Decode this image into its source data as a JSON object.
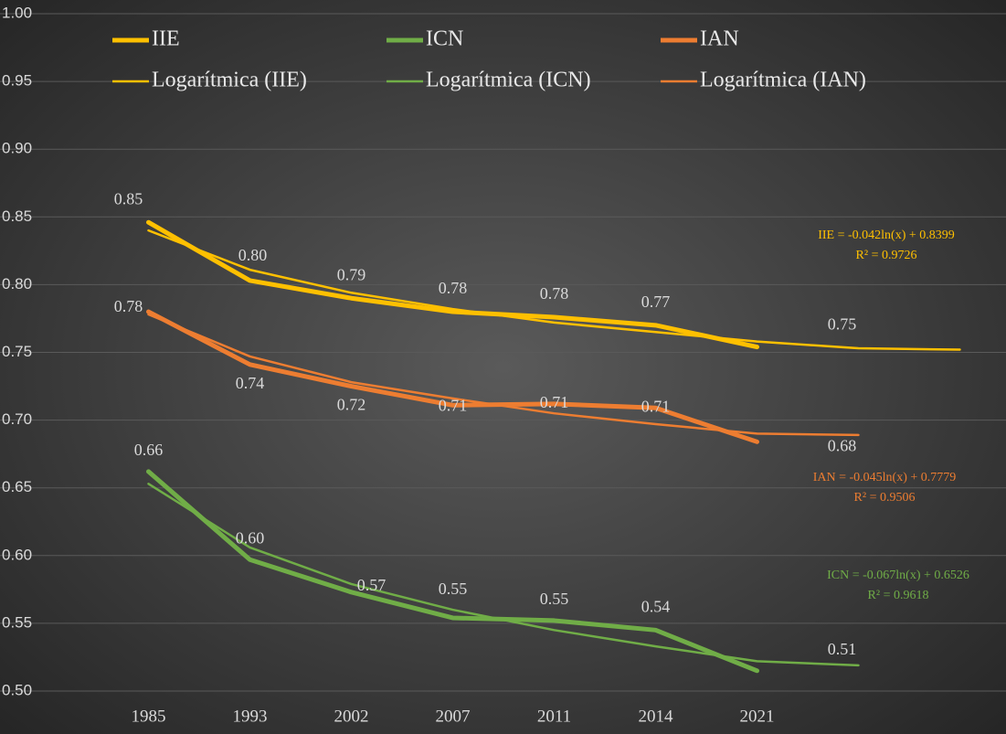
{
  "chart_data": {
    "type": "line",
    "categories": [
      "1985",
      "1993",
      "2002",
      "2007",
      "2011",
      "2014",
      "2021",
      null,
      null
    ],
    "ylim": [
      0.5,
      1.0
    ],
    "yticks": [
      {
        "value": 0.5,
        "label": "0.50"
      },
      0.55,
      {
        "value": 0.6,
        "label": "0.60"
      },
      0.65,
      {
        "value": 0.7,
        "label": "0.70"
      },
      0.75,
      {
        "value": 0.8,
        "label": "0.80"
      },
      0.85,
      {
        "value": 0.9,
        "label": "0.90"
      },
      0.95,
      {
        "value": 1.0,
        "label": "1.00"
      }
    ],
    "grid": true,
    "legend": "top",
    "series": [
      {
        "name": "IIE",
        "color": "#ffc000",
        "values": [
          0.846,
          0.803,
          0.79,
          0.78,
          0.776,
          0.77,
          0.754,
          null,
          null
        ],
        "value_labels": [
          "0.85",
          "0.80",
          "0.79",
          "0.78",
          "0.78",
          "0.77",
          "0.75",
          null,
          null
        ]
      },
      {
        "name": "ICN",
        "color": "#70ad47",
        "values": [
          0.662,
          0.597,
          0.573,
          0.554,
          0.552,
          0.545,
          0.515,
          null,
          null
        ],
        "value_labels": [
          "0.66",
          "0.60",
          "0.57",
          "0.55",
          "0.55",
          "0.54",
          "0.51",
          null,
          null
        ]
      },
      {
        "name": "IAN",
        "color": "#ed7d31",
        "values": [
          0.78,
          0.741,
          0.725,
          0.711,
          0.712,
          0.709,
          0.684,
          null,
          null
        ],
        "value_labels": [
          "0.78",
          "0.74",
          "0.72",
          "0.71",
          "0.71",
          "0.71",
          "0.68",
          null,
          null
        ]
      },
      {
        "name": "Logarítmica (IIE)",
        "color": "#ffc000",
        "trendline": true,
        "values": [
          0.84,
          0.811,
          0.794,
          0.782,
          0.772,
          0.765,
          0.758,
          0.753,
          0.752
        ],
        "equation": "IIE = -0.042ln(x) + 0.8399",
        "r2": "R² = 0.9726"
      },
      {
        "name": "Logarítmica (ICN)",
        "color": "#70ad47",
        "trendline": true,
        "values": [
          0.653,
          0.606,
          0.579,
          0.56,
          0.545,
          0.533,
          0.522,
          0.519,
          null
        ],
        "equation": "ICN = -0.067ln(x) + 0.6526",
        "r2": "R² = 0.9618"
      },
      {
        "name": "Logarítmica (IAN)",
        "color": "#ed7d31",
        "trendline": true,
        "values": [
          0.778,
          0.747,
          0.728,
          0.716,
          0.705,
          0.697,
          0.69,
          0.689,
          null
        ],
        "equation": "IAN = -0.045ln(x) + 0.7779",
        "r2": "R² = 0.9506"
      }
    ]
  }
}
